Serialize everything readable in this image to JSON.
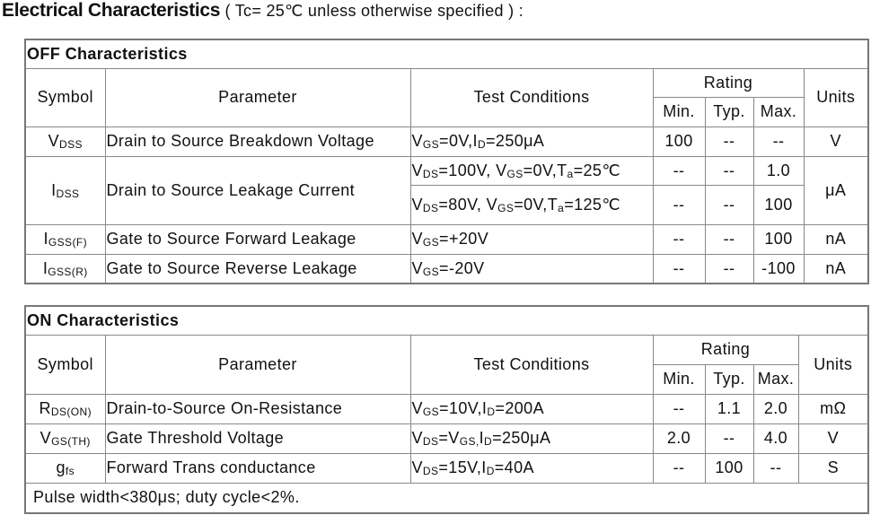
{
  "heading": {
    "bold": "Electrical Characteristics",
    "note": " ( Tc= 25℃  unless otherwise specified ) :"
  },
  "headers": {
    "symbol": "Symbol",
    "parameter": "Parameter",
    "conditions": "Test Conditions",
    "rating": "Rating",
    "min": "Min.",
    "typ": "Typ.",
    "max": "Max.",
    "units": "Units"
  },
  "off": {
    "title": "OFF Characteristics",
    "rows": [
      {
        "symbol": [
          [
            "V",
            ""
          ],
          [
            "DSS",
            "s"
          ]
        ],
        "parameter": "Drain to Source Breakdown Voltage",
        "conds": [
          {
            "cond": [
              [
                "V",
                ""
              ],
              [
                "GS",
                "s"
              ],
              [
                "=0V,I",
                ""
              ],
              [
                "D",
                "s"
              ],
              [
                "=250μA",
                ""
              ]
            ],
            "min": "100",
            "typ": "--",
            "max": "--"
          }
        ],
        "units": "V"
      },
      {
        "symbol": [
          [
            "I",
            ""
          ],
          [
            "DSS",
            "s"
          ]
        ],
        "parameter": "Drain to Source Leakage Current",
        "conds": [
          {
            "cond": [
              [
                "V",
                ""
              ],
              [
                "DS",
                "s"
              ],
              [
                "=100V, V",
                ""
              ],
              [
                "GS",
                "s"
              ],
              [
                "=0V,T",
                ""
              ],
              [
                "a",
                "s"
              ],
              [
                "=25℃",
                ""
              ]
            ],
            "min": "--",
            "typ": "--",
            "max": "1.0"
          },
          {
            "cond": [
              [
                "V",
                ""
              ],
              [
                "DS",
                "s"
              ],
              [
                "=80V, V",
                ""
              ],
              [
                "GS",
                "s"
              ],
              [
                "=0V,T",
                ""
              ],
              [
                "a",
                "s"
              ],
              [
                "=125℃",
                ""
              ]
            ],
            "min": "--",
            "typ": "--",
            "max": "100"
          }
        ],
        "units": "μA"
      },
      {
        "symbol": [
          [
            "I",
            ""
          ],
          [
            "GSS(F)",
            "s"
          ]
        ],
        "parameter": "Gate to Source Forward Leakage",
        "conds": [
          {
            "cond": [
              [
                "V",
                ""
              ],
              [
                "GS",
                "s"
              ],
              [
                "=+20V",
                ""
              ]
            ],
            "min": "--",
            "typ": "--",
            "max": "100"
          }
        ],
        "units": "nA"
      },
      {
        "symbol": [
          [
            "I",
            ""
          ],
          [
            "GSS(R)",
            "s"
          ]
        ],
        "parameter": "Gate to Source Reverse Leakage",
        "conds": [
          {
            "cond": [
              [
                "V",
                ""
              ],
              [
                "GS",
                "s"
              ],
              [
                "=-20V",
                ""
              ]
            ],
            "min": "--",
            "typ": "--",
            "max": "-100"
          }
        ],
        "units": "nA"
      }
    ]
  },
  "on": {
    "title": "ON Characteristics",
    "rows": [
      {
        "symbol": [
          [
            "R",
            ""
          ],
          [
            "DS(ON)",
            "s"
          ]
        ],
        "parameter": "Drain-to-Source On-Resistance",
        "conds": [
          {
            "cond": [
              [
                "V",
                ""
              ],
              [
                "GS",
                "s"
              ],
              [
                "=10V,I",
                ""
              ],
              [
                "D",
                "s"
              ],
              [
                "=200A",
                ""
              ]
            ],
            "min": "--",
            "typ": "1.1",
            "max": "2.0"
          }
        ],
        "units": "mΩ"
      },
      {
        "symbol": [
          [
            "V",
            ""
          ],
          [
            "GS(TH)",
            "s"
          ]
        ],
        "parameter": "Gate Threshold Voltage",
        "conds": [
          {
            "cond": [
              [
                "V",
                ""
              ],
              [
                "DS",
                "s"
              ],
              [
                "=V",
                ""
              ],
              [
                "GS,",
                "s"
              ],
              [
                "I",
                ""
              ],
              [
                "D",
                "s"
              ],
              [
                "=250μA",
                ""
              ]
            ],
            "min": "2.0",
            "typ": "--",
            "max": "4.0"
          }
        ],
        "units": "V"
      },
      {
        "symbol": [
          [
            "g",
            ""
          ],
          [
            "fs",
            "s"
          ]
        ],
        "parameter": "Forward Trans conductance",
        "conds": [
          {
            "cond": [
              [
                "V",
                ""
              ],
              [
                "DS",
                "s"
              ],
              [
                "=15V,I",
                ""
              ],
              [
                "D",
                "s"
              ],
              [
                "=40A",
                ""
              ]
            ],
            "min": "--",
            "typ": "100",
            "max": "--"
          }
        ],
        "units": "S"
      }
    ],
    "footnote": "Pulse width<380μs; duty cycle<2%."
  }
}
